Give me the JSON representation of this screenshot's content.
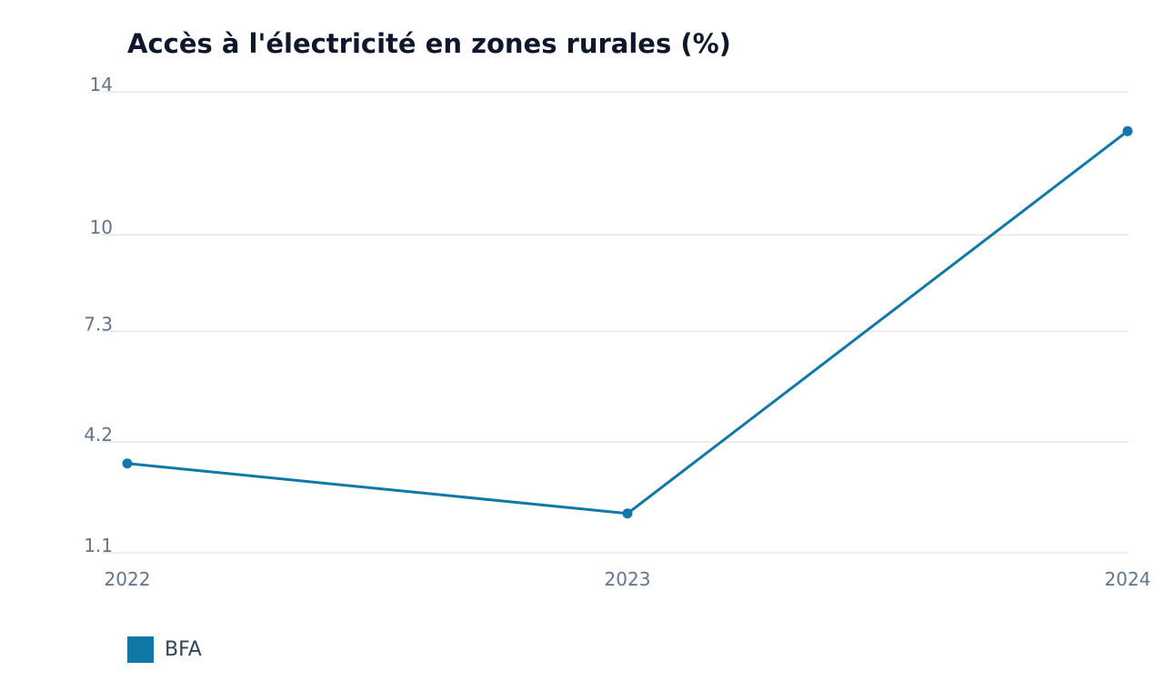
{
  "chart_data": {
    "type": "line",
    "title": "Accès à l'électricité en zones rurales (%)",
    "xlabel": "",
    "ylabel": "",
    "categories": [
      "2022",
      "2023",
      "2024"
    ],
    "series": [
      {
        "name": "BFA",
        "values": [
          3.6,
          2.2,
          12.9
        ],
        "color": "#1077a7"
      }
    ],
    "y_ticks": [
      "1.1",
      "4.2",
      "7.3",
      "10",
      "14"
    ],
    "ylim": [
      1.1,
      14
    ],
    "grid": true,
    "legend_position": "bottom-left",
    "colors": {
      "grid": "#e5e7eb",
      "tick_text": "#64748b",
      "title": "#0f172a"
    }
  }
}
